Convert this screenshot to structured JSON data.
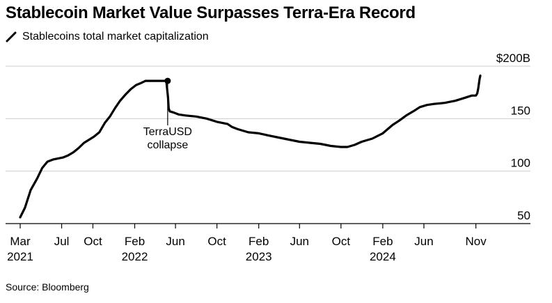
{
  "title": "Stablecoin Market Value Surpasses Terra-Era Record",
  "legend_label": "Stablecoins total market capitalization",
  "source": "Source: Bloomberg",
  "colors": {
    "line": "#000000",
    "grid": "#cccccc",
    "axis": "#000000"
  },
  "chart_data": {
    "type": "line",
    "title": "Stablecoin Market Value Surpasses Terra-Era Record",
    "xlabel": "",
    "ylabel": "",
    "ylim": [
      50,
      200
    ],
    "yticks": [
      {
        "value": 200,
        "label": "$200B"
      },
      {
        "value": 150,
        "label": "150"
      },
      {
        "value": 100,
        "label": "100"
      },
      {
        "value": 50,
        "label": "50"
      }
    ],
    "xticks": [
      {
        "date": "2021-03-01",
        "label": "Mar",
        "year": "2021"
      },
      {
        "date": "2021-07-01",
        "label": "Jul",
        "year": ""
      },
      {
        "date": "2021-10-01",
        "label": "Oct",
        "year": ""
      },
      {
        "date": "2022-02-01",
        "label": "Feb",
        "year": "2022"
      },
      {
        "date": "2022-06-01",
        "label": "Jun",
        "year": ""
      },
      {
        "date": "2022-10-01",
        "label": "Oct",
        "year": ""
      },
      {
        "date": "2023-02-01",
        "label": "Feb",
        "year": "2023"
      },
      {
        "date": "2023-06-01",
        "label": "Jun",
        "year": ""
      },
      {
        "date": "2023-10-01",
        "label": "Oct",
        "year": ""
      },
      {
        "date": "2024-02-01",
        "label": "Feb",
        "year": "2024"
      },
      {
        "date": "2024-06-01",
        "label": "Jun",
        "year": ""
      },
      {
        "date": "2024-11-01",
        "label": "Nov",
        "year": ""
      }
    ],
    "grid": true,
    "series": [
      {
        "x": [
          "2021-03-01",
          "2021-03-15",
          "2021-04-01",
          "2021-04-20",
          "2021-05-05",
          "2021-05-20",
          "2021-06-05",
          "2021-06-20",
          "2021-07-05",
          "2021-07-20",
          "2021-08-05",
          "2021-08-20",
          "2021-09-05",
          "2021-09-20",
          "2021-10-05",
          "2021-10-20",
          "2021-11-05",
          "2021-11-20",
          "2021-12-05",
          "2021-12-20",
          "2022-01-05",
          "2022-01-20",
          "2022-02-05",
          "2022-02-20",
          "2022-03-05",
          "2022-03-20",
          "2022-04-05",
          "2022-04-20",
          "2022-05-05",
          "2022-05-10",
          "2022-05-12",
          "2022-05-15",
          "2022-05-25",
          "2022-06-10",
          "2022-07-01",
          "2022-08-01",
          "2022-09-01",
          "2022-10-01",
          "2022-11-01",
          "2022-11-15",
          "2022-12-01",
          "2023-01-01",
          "2023-02-01",
          "2023-03-01",
          "2023-04-01",
          "2023-05-01",
          "2023-06-01",
          "2023-07-01",
          "2023-08-01",
          "2023-09-01",
          "2023-10-01",
          "2023-10-20",
          "2023-11-10",
          "2023-12-01",
          "2024-01-01",
          "2024-02-01",
          "2024-03-01",
          "2024-03-20",
          "2024-04-10",
          "2024-05-01",
          "2024-05-20",
          "2024-06-10",
          "2024-07-01",
          "2024-08-01",
          "2024-09-01",
          "2024-10-01",
          "2024-10-20",
          "2024-11-01",
          "2024-11-05",
          "2024-11-08",
          "2024-11-12",
          "2024-11-14"
        ],
        "values": [
          56,
          65,
          82,
          93,
          103,
          109,
          111,
          112,
          113,
          115,
          118,
          122,
          127,
          130,
          133,
          137,
          146,
          152,
          160,
          167,
          173,
          178,
          182,
          184,
          186,
          186,
          186,
          186,
          186,
          170,
          160,
          157,
          156,
          154,
          153,
          152,
          150,
          147,
          145,
          142,
          140,
          137,
          136,
          134,
          132,
          130,
          128,
          127,
          126,
          124,
          123,
          123,
          125,
          128,
          131,
          136,
          144,
          148,
          153,
          157,
          161,
          163,
          164,
          165,
          167,
          170,
          172,
          172,
          174,
          179,
          188,
          191
        ]
      }
    ],
    "annotations": [
      {
        "date": "2022-05-09",
        "value": 186,
        "text": [
          "TerraUSD",
          "collapse"
        ]
      }
    ]
  }
}
